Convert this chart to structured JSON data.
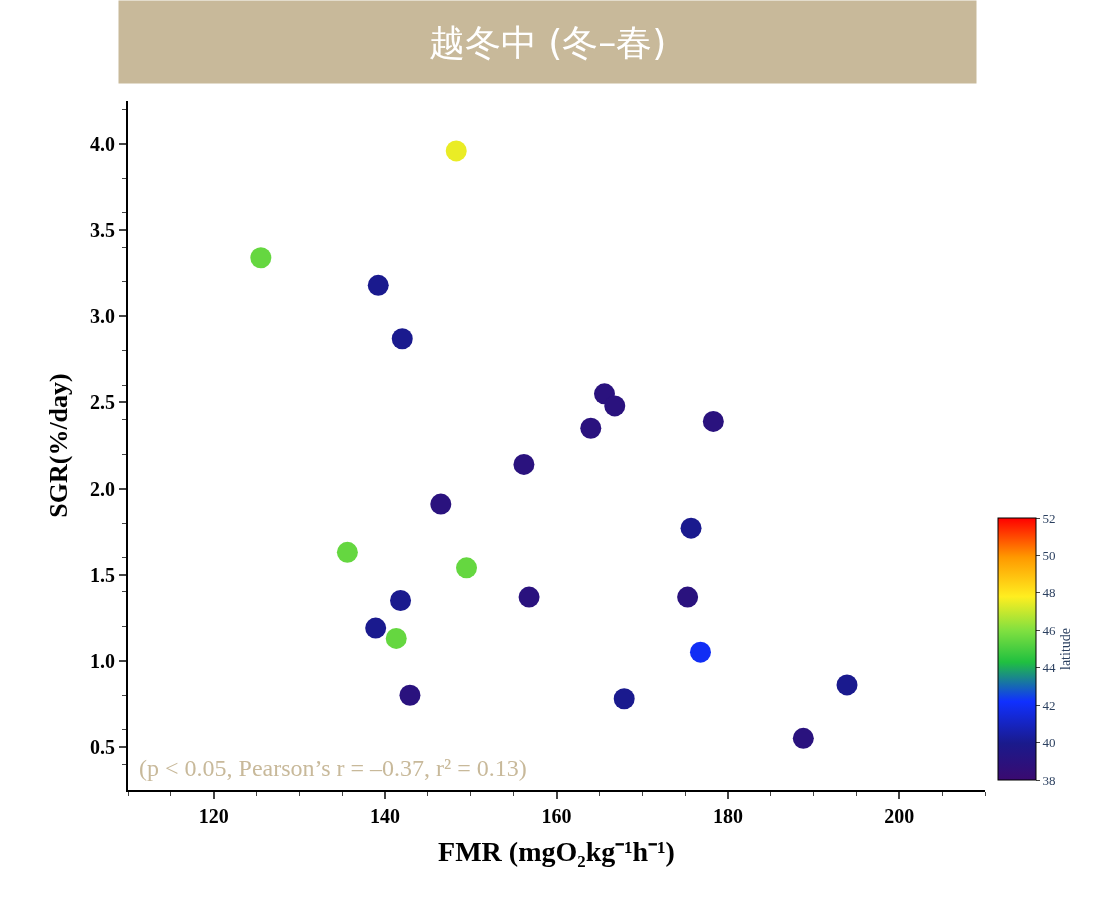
{
  "chart_data": {
    "type": "scatter",
    "title": "越冬中 (冬–春)",
    "xlabel": "FMR (mgO₂kg⁻¹h⁻¹)",
    "ylabel": "SGR(%/day)",
    "clabel": "latitude",
    "annotations": [
      "(p < 0.05, Pearson’s r = –0.37, r² = 0.13)"
    ],
    "x": [
      148.3,
      125.5,
      139.2,
      142.0,
      165.6,
      166.8,
      164.0,
      178.3,
      156.2,
      146.5,
      175.7,
      135.6,
      149.5,
      141.8,
      156.8,
      175.3,
      138.9,
      141.3,
      176.8,
      142.9,
      167.9,
      193.9,
      188.8
    ],
    "values": [
      3.96,
      3.34,
      3.18,
      2.87,
      2.55,
      2.48,
      2.35,
      2.39,
      2.14,
      1.91,
      1.77,
      1.63,
      1.54,
      1.35,
      1.37,
      1.37,
      1.19,
      1.13,
      1.05,
      0.8,
      0.78,
      0.86,
      0.55
    ],
    "cvalues": [
      47.5,
      45.5,
      40,
      40,
      39,
      39,
      39,
      39,
      39,
      39,
      40,
      45.5,
      45.5,
      40,
      39,
      39,
      40,
      45.5,
      42,
      39,
      40,
      40,
      39
    ],
    "clim": [
      38,
      52
    ],
    "cticks": [
      38,
      40,
      42,
      44,
      46,
      48,
      50,
      52
    ],
    "xlim": [
      110,
      210
    ],
    "xticks": [
      120,
      140,
      160,
      180,
      200
    ],
    "ylim": [
      0.25,
      4.25
    ],
    "yticks": [
      0.5,
      {
        "value": 1,
        "label": "1.0"
      },
      1.5,
      {
        "value": 2,
        "label": "2.0"
      },
      2.5,
      {
        "value": 3,
        "label": "3.0"
      },
      3.5,
      {
        "value": 4,
        "label": "4.0"
      }
    ]
  }
}
